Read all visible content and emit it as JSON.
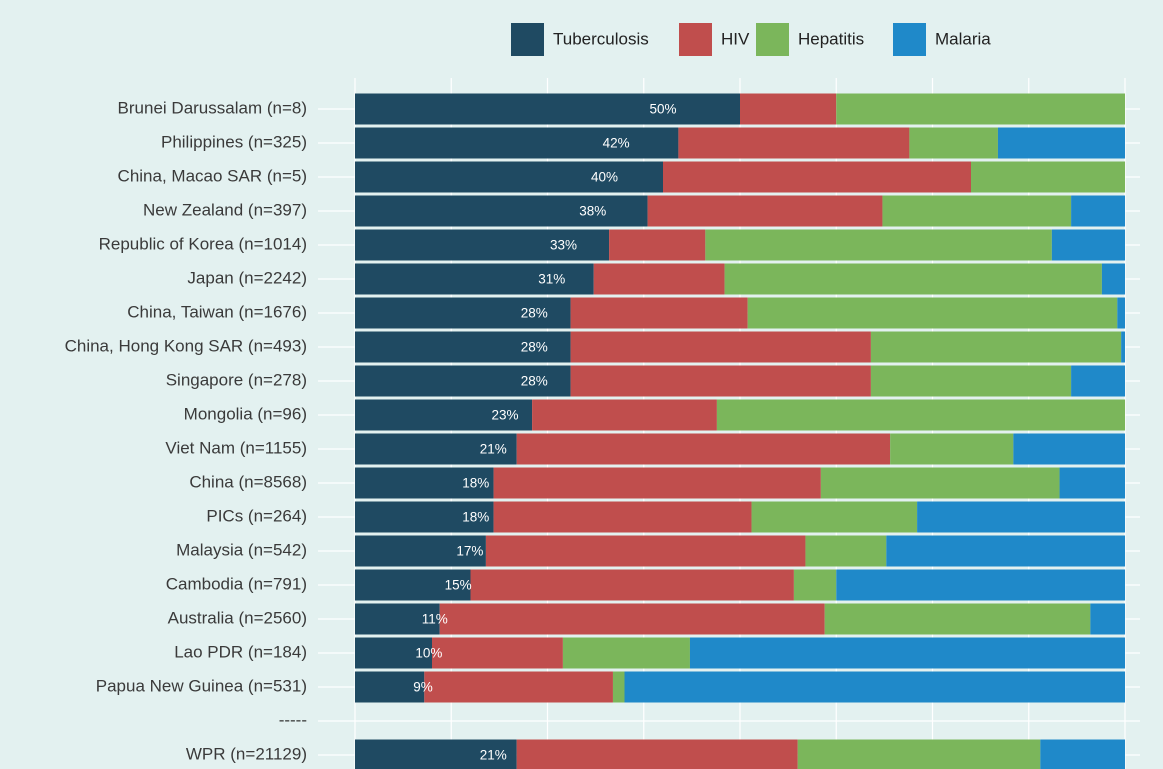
{
  "chart_data": {
    "type": "bar",
    "orientation": "horizontal",
    "stacked": true,
    "categories": [
      "Brunei Darussalam (n=8)",
      "Philippines (n=325)",
      "China, Macao SAR (n=5)",
      "New Zealand (n=397)",
      "Republic of Korea (n=1014)",
      "Japan (n=2242)",
      "China, Taiwan (n=1676)",
      "China, Hong Kong SAR (n=493)",
      "Singapore (n=278)",
      "Mongolia (n=96)",
      "Viet Nam (n=1155)",
      "China (n=8568)",
      "PICs (n=264)",
      "Malaysia (n=542)",
      "Cambodia (n=791)",
      "Australia (n=2560)",
      "Lao PDR (n=184)",
      "Papua New Guinea (n=531)",
      "-----",
      "WPR (n=21129)"
    ],
    "series": [
      {
        "name": "Tuberculosis",
        "color": "#1f4a62",
        "values": [
          50,
          42,
          40,
          38,
          33,
          31,
          28,
          28,
          28,
          23,
          21,
          18,
          18,
          17,
          15,
          11,
          10,
          9,
          null,
          21
        ],
        "value_labels": [
          "50%",
          "42%",
          "40%",
          "38%",
          "33%",
          "31%",
          "28%",
          "28%",
          "28%",
          "23%",
          "21%",
          "18%",
          "18%",
          "17%",
          "15%",
          "11%",
          "10%",
          "9%",
          null,
          "21%"
        ]
      },
      {
        "name": "HIV",
        "color": "#c04e4d",
        "values": [
          12.5,
          30,
          40,
          30.5,
          12.5,
          17,
          23,
          39,
          39,
          24,
          48.5,
          42.5,
          33.5,
          41.5,
          42,
          50,
          17,
          24.5,
          null,
          36.5
        ]
      },
      {
        "name": "Hepatitis",
        "color": "#7bb65b",
        "values": [
          37.5,
          11.5,
          20,
          24.5,
          45,
          49,
          48,
          32.5,
          26,
          53,
          16,
          31,
          21.5,
          10.5,
          5.5,
          34.5,
          16.5,
          1.5,
          null,
          31.5
        ]
      },
      {
        "name": "Malaria",
        "color": "#1f89c9",
        "values": [
          0,
          16.5,
          0,
          7,
          9.5,
          3,
          1,
          0.5,
          7,
          0,
          14.5,
          8.5,
          27,
          31,
          37.5,
          4.5,
          56.5,
          65,
          null,
          11
        ]
      }
    ],
    "xlim": [
      0,
      100
    ],
    "xticks": [
      0,
      12.5,
      25,
      37.5,
      50,
      62.5,
      75,
      87.5,
      100
    ],
    "grid": true,
    "legend": "top"
  }
}
